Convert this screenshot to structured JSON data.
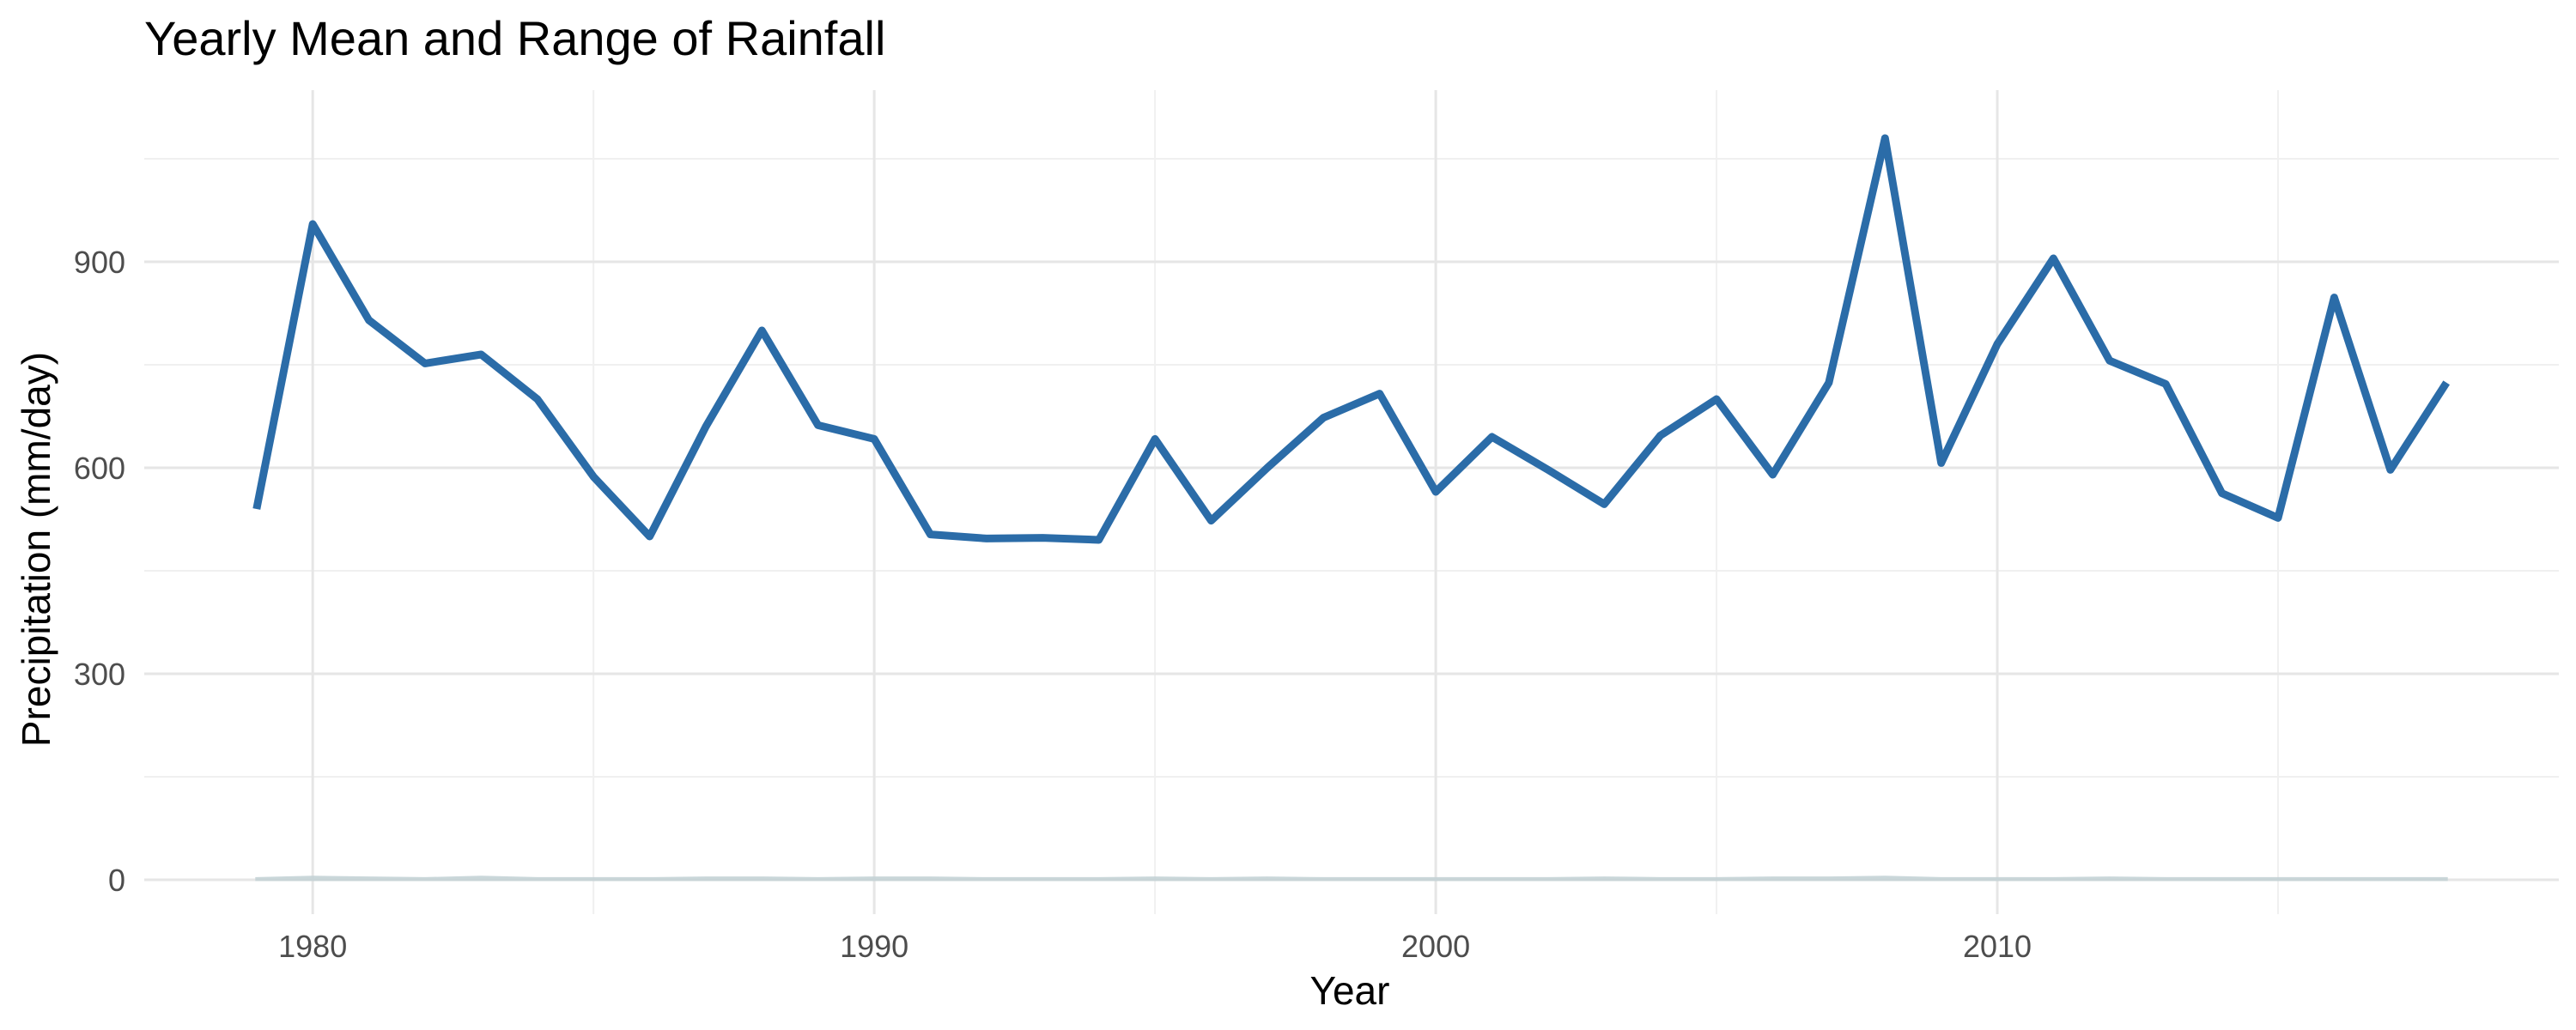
{
  "chart_data": {
    "type": "line",
    "title": "Yearly Mean and Range of Rainfall",
    "xlabel": "Year",
    "ylabel": "Precipitation (mm/day)",
    "xlim": [
      1977,
      2020
    ],
    "ylim": [
      -50,
      1150
    ],
    "x_ticks": [
      1980,
      1990,
      2000,
      2010
    ],
    "y_ticks": [
      0,
      300,
      600,
      900
    ],
    "grid": true,
    "colors": {
      "mean": "#2b6ca8",
      "range": "#c5d3d6"
    },
    "series": [
      {
        "x": [
          1979,
          1980,
          1981,
          1982,
          1983,
          1984,
          1985,
          1986,
          1987,
          1988,
          1989,
          1990,
          1991,
          1992,
          1993,
          1994,
          1995,
          1996,
          1997,
          1998,
          1999,
          2000,
          2001,
          2002,
          2003,
          2004,
          2005,
          2006,
          2007,
          2008,
          2009,
          2010,
          2011,
          2012,
          2013,
          2014,
          2015,
          2016,
          2017,
          2018
        ],
        "values": [
          540,
          955,
          815,
          752,
          765,
          700,
          587,
          500,
          660,
          800,
          662,
          642,
          503,
          497,
          498,
          495,
          642,
          523,
          600,
          673,
          708,
          565,
          645,
          597,
          547,
          647,
          700,
          590,
          724,
          1080,
          607,
          780,
          905,
          756,
          722,
          563,
          527,
          848,
          597,
          724
        ]
      },
      {
        "range_lower": [
          0,
          0,
          0,
          0,
          0,
          0,
          0,
          0,
          0,
          0,
          0,
          0,
          0,
          0,
          0,
          0,
          0,
          0,
          0,
          0,
          0,
          0,
          0,
          0,
          0,
          0,
          0,
          0,
          0,
          0,
          0,
          0,
          0,
          0,
          0,
          0,
          0,
          0,
          0,
          0
        ],
        "range_upper": [
          2,
          4,
          3,
          2,
          4,
          2,
          2,
          2,
          3,
          3,
          2,
          3,
          3,
          2,
          2,
          2,
          3,
          2,
          3,
          2,
          2,
          2,
          2,
          2,
          3,
          2,
          2,
          3,
          3,
          4,
          2,
          2,
          2,
          3,
          2,
          2,
          2,
          2,
          2,
          2
        ]
      }
    ]
  }
}
